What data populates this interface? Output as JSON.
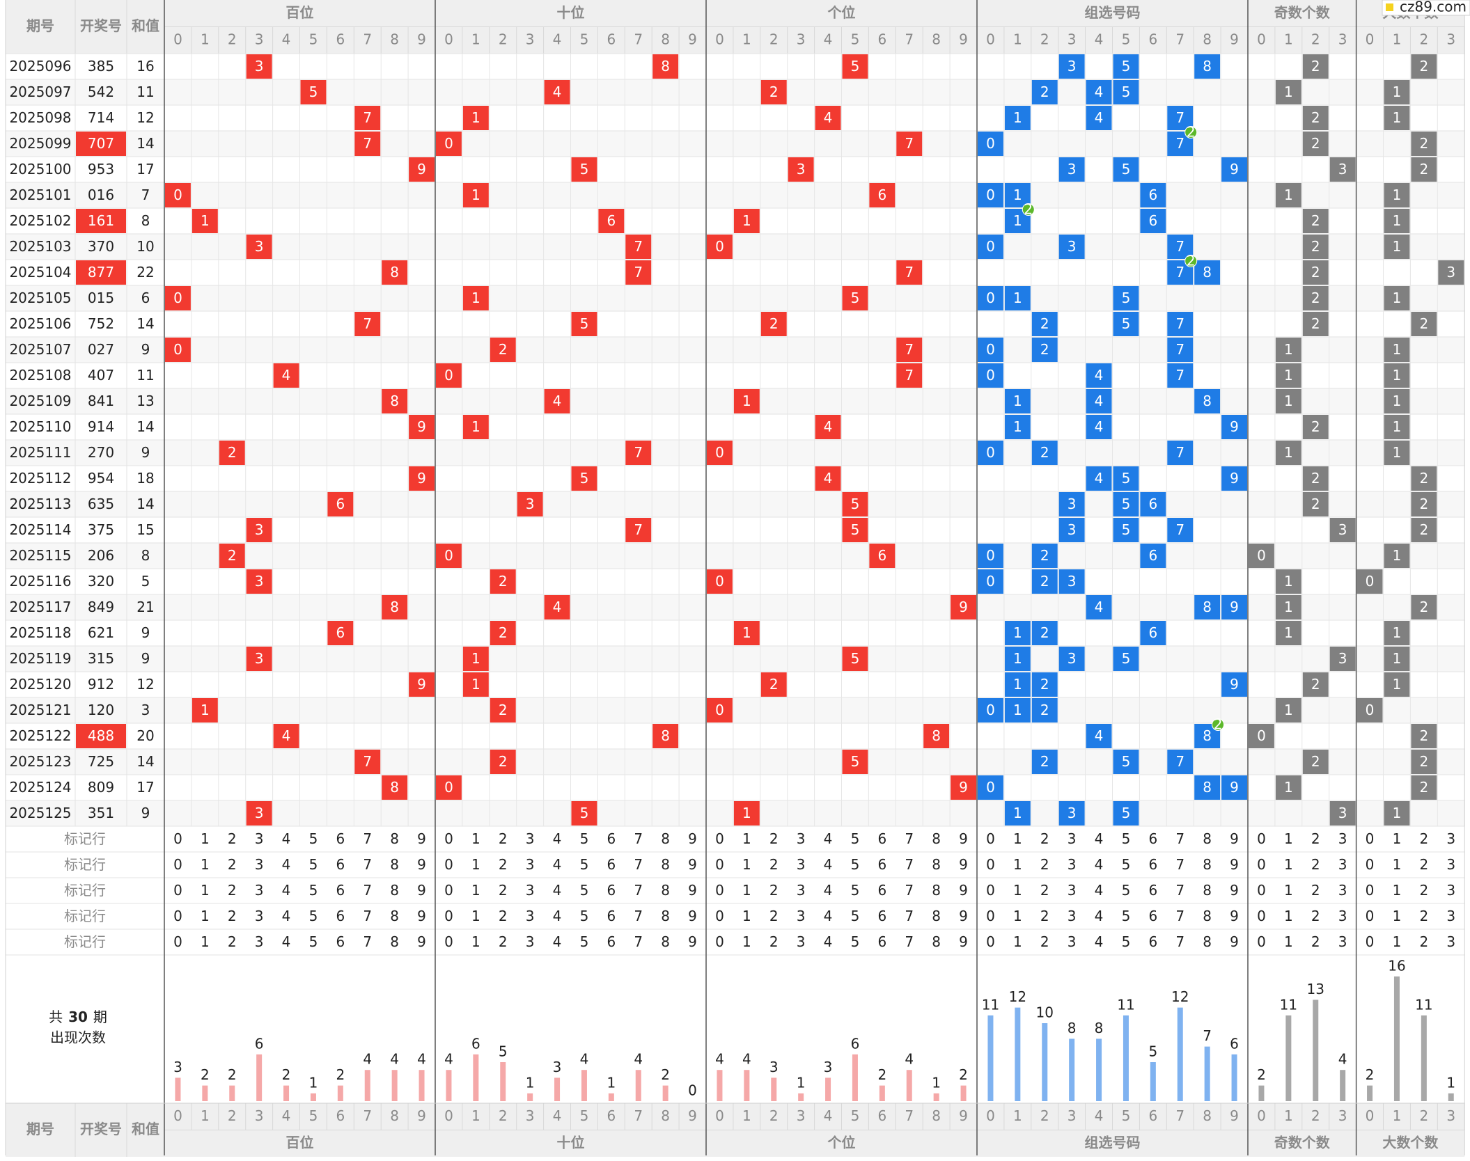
{
  "header": {
    "issue": "期号",
    "number": "开奖号",
    "sum": "和值"
  },
  "sections": [
    {
      "name": "百位",
      "digits": [
        0,
        1,
        2,
        3,
        4,
        5,
        6,
        7,
        8,
        9
      ]
    },
    {
      "name": "十位",
      "digits": [
        0,
        1,
        2,
        3,
        4,
        5,
        6,
        7,
        8,
        9
      ]
    },
    {
      "name": "个位",
      "digits": [
        0,
        1,
        2,
        3,
        4,
        5,
        6,
        7,
        8,
        9
      ]
    },
    {
      "name": "组选号码",
      "digits": [
        0,
        1,
        2,
        3,
        4,
        5,
        6,
        7,
        8,
        9
      ]
    },
    {
      "name": "奇数个数",
      "digits": [
        0,
        1,
        2,
        3
      ]
    },
    {
      "name": "大数个数",
      "digits": [
        0,
        1,
        2,
        3
      ]
    }
  ],
  "rows": [
    {
      "issue": "2025096",
      "number": "385",
      "sum": 16,
      "digits": [
        3,
        8,
        5
      ],
      "group": [
        3,
        5,
        8
      ],
      "odd": 2,
      "big": 2
    },
    {
      "issue": "2025097",
      "number": "542",
      "sum": 11,
      "digits": [
        5,
        4,
        2
      ],
      "group": [
        2,
        4,
        5
      ],
      "odd": 1,
      "big": 1
    },
    {
      "issue": "2025098",
      "number": "714",
      "sum": 12,
      "digits": [
        7,
        1,
        4
      ],
      "group": [
        1,
        4,
        7
      ],
      "odd": 2,
      "big": 1
    },
    {
      "issue": "2025099",
      "number": "707",
      "sum": 14,
      "digits": [
        7,
        0,
        7
      ],
      "group": [
        0,
        7
      ],
      "pair": {
        "digit": 7,
        "count": 2
      },
      "odd": 2,
      "big": 2
    },
    {
      "issue": "2025100",
      "number": "953",
      "sum": 17,
      "digits": [
        9,
        5,
        3
      ],
      "group": [
        3,
        5,
        9
      ],
      "odd": 3,
      "big": 2
    },
    {
      "issue": "2025101",
      "number": "016",
      "sum": 7,
      "digits": [
        0,
        1,
        6
      ],
      "group": [
        0,
        1,
        6
      ],
      "odd": 1,
      "big": 1
    },
    {
      "issue": "2025102",
      "number": "161",
      "sum": 8,
      "digits": [
        1,
        6,
        1
      ],
      "group": [
        1,
        6
      ],
      "pair": {
        "digit": 1,
        "count": 2
      },
      "odd": 2,
      "big": 1
    },
    {
      "issue": "2025103",
      "number": "370",
      "sum": 10,
      "digits": [
        3,
        7,
        0
      ],
      "group": [
        0,
        3,
        7
      ],
      "odd": 2,
      "big": 1
    },
    {
      "issue": "2025104",
      "number": "877",
      "sum": 22,
      "digits": [
        8,
        7,
        7
      ],
      "group": [
        7,
        8
      ],
      "pair": {
        "digit": 7,
        "count": 2
      },
      "odd": 2,
      "big": 3
    },
    {
      "issue": "2025105",
      "number": "015",
      "sum": 6,
      "digits": [
        0,
        1,
        5
      ],
      "group": [
        0,
        1,
        5
      ],
      "odd": 2,
      "big": 1
    },
    {
      "issue": "2025106",
      "number": "752",
      "sum": 14,
      "digits": [
        7,
        5,
        2
      ],
      "group": [
        2,
        5,
        7
      ],
      "odd": 2,
      "big": 2
    },
    {
      "issue": "2025107",
      "number": "027",
      "sum": 9,
      "digits": [
        0,
        2,
        7
      ],
      "group": [
        0,
        2,
        7
      ],
      "odd": 1,
      "big": 1
    },
    {
      "issue": "2025108",
      "number": "407",
      "sum": 11,
      "digits": [
        4,
        0,
        7
      ],
      "group": [
        0,
        4,
        7
      ],
      "odd": 1,
      "big": 1
    },
    {
      "issue": "2025109",
      "number": "841",
      "sum": 13,
      "digits": [
        8,
        4,
        1
      ],
      "group": [
        1,
        4,
        8
      ],
      "odd": 1,
      "big": 1
    },
    {
      "issue": "2025110",
      "number": "914",
      "sum": 14,
      "digits": [
        9,
        1,
        4
      ],
      "group": [
        1,
        4,
        9
      ],
      "odd": 2,
      "big": 1
    },
    {
      "issue": "2025111",
      "number": "270",
      "sum": 9,
      "digits": [
        2,
        7,
        0
      ],
      "group": [
        0,
        2,
        7
      ],
      "odd": 1,
      "big": 1
    },
    {
      "issue": "2025112",
      "number": "954",
      "sum": 18,
      "digits": [
        9,
        5,
        4
      ],
      "group": [
        4,
        5,
        9
      ],
      "odd": 2,
      "big": 2
    },
    {
      "issue": "2025113",
      "number": "635",
      "sum": 14,
      "digits": [
        6,
        3,
        5
      ],
      "group": [
        3,
        5,
        6
      ],
      "odd": 2,
      "big": 2
    },
    {
      "issue": "2025114",
      "number": "375",
      "sum": 15,
      "digits": [
        3,
        7,
        5
      ],
      "group": [
        3,
        5,
        7
      ],
      "odd": 3,
      "big": 2
    },
    {
      "issue": "2025115",
      "number": "206",
      "sum": 8,
      "digits": [
        2,
        0,
        6
      ],
      "group": [
        0,
        2,
        6
      ],
      "odd": 0,
      "big": 1
    },
    {
      "issue": "2025116",
      "number": "320",
      "sum": 5,
      "digits": [
        3,
        2,
        0
      ],
      "group": [
        0,
        2,
        3
      ],
      "odd": 1,
      "big": 0
    },
    {
      "issue": "2025117",
      "number": "849",
      "sum": 21,
      "digits": [
        8,
        4,
        9
      ],
      "group": [
        4,
        8,
        9
      ],
      "odd": 1,
      "big": 2
    },
    {
      "issue": "2025118",
      "number": "621",
      "sum": 9,
      "digits": [
        6,
        2,
        1
      ],
      "group": [
        1,
        2,
        6
      ],
      "odd": 1,
      "big": 1
    },
    {
      "issue": "2025119",
      "number": "315",
      "sum": 9,
      "digits": [
        3,
        1,
        5
      ],
      "group": [
        1,
        3,
        5
      ],
      "odd": 3,
      "big": 1
    },
    {
      "issue": "2025120",
      "number": "912",
      "sum": 12,
      "digits": [
        9,
        1,
        2
      ],
      "group": [
        1,
        2,
        9
      ],
      "odd": 2,
      "big": 1
    },
    {
      "issue": "2025121",
      "number": "120",
      "sum": 3,
      "digits": [
        1,
        2,
        0
      ],
      "group": [
        0,
        1,
        2
      ],
      "odd": 1,
      "big": 0
    },
    {
      "issue": "2025122",
      "number": "488",
      "sum": 20,
      "digits": [
        4,
        8,
        8
      ],
      "group": [
        4,
        8
      ],
      "pair": {
        "digit": 8,
        "count": 2
      },
      "odd": 0,
      "big": 2
    },
    {
      "issue": "2025123",
      "number": "725",
      "sum": 14,
      "digits": [
        7,
        2,
        5
      ],
      "group": [
        2,
        5,
        7
      ],
      "odd": 2,
      "big": 2
    },
    {
      "issue": "2025124",
      "number": "809",
      "sum": 17,
      "digits": [
        8,
        0,
        9
      ],
      "group": [
        0,
        8,
        9
      ],
      "odd": 1,
      "big": 2
    },
    {
      "issue": "2025125",
      "number": "351",
      "sum": 9,
      "digits": [
        3,
        5,
        1
      ],
      "group": [
        1,
        3,
        5
      ],
      "odd": 3,
      "big": 1
    }
  ],
  "mark_rows": [
    "标记行",
    "标记行",
    "标记行",
    "标记行",
    "标记行"
  ],
  "stats": {
    "prefix": "共",
    "periods": 30,
    "suffix": "期",
    "label": "出现次数",
    "counts": [
      [
        3,
        2,
        2,
        6,
        2,
        1,
        2,
        4,
        4,
        4
      ],
      [
        4,
        6,
        5,
        1,
        3,
        4,
        1,
        4,
        2,
        0
      ],
      [
        4,
        4,
        3,
        1,
        3,
        6,
        2,
        4,
        1,
        2
      ],
      [
        11,
        12,
        10,
        8,
        8,
        11,
        5,
        12,
        7,
        6
      ],
      [
        2,
        11,
        13,
        4
      ],
      [
        2,
        16,
        11,
        1
      ]
    ]
  },
  "watermark": "cz89.com"
}
